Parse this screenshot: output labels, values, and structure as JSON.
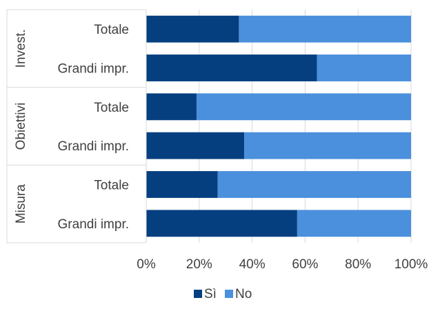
{
  "chart_data": {
    "type": "bar",
    "orientation": "horizontal",
    "stacked": "percent",
    "groups": [
      {
        "label": "Invest.",
        "categories": [
          "Totale",
          "Grandi impr."
        ]
      },
      {
        "label": "Obiettivi",
        "categories": [
          "Totale",
          "Grandi impr."
        ]
      },
      {
        "label": "Misura",
        "categories": [
          "Totale",
          "Grandi impr."
        ]
      }
    ],
    "series": [
      {
        "name": "Sì",
        "color": "#063f80",
        "values": [
          35,
          64.5,
          19,
          37,
          27,
          57
        ]
      },
      {
        "name": "No",
        "color": "#4a90dc",
        "values": [
          65,
          35.5,
          81,
          63,
          73,
          43
        ]
      }
    ],
    "xlim": [
      0,
      100
    ],
    "xticks": [
      "0%",
      "20%",
      "40%",
      "60%",
      "80%",
      "100%"
    ],
    "grid": true,
    "legend": "bottom"
  }
}
